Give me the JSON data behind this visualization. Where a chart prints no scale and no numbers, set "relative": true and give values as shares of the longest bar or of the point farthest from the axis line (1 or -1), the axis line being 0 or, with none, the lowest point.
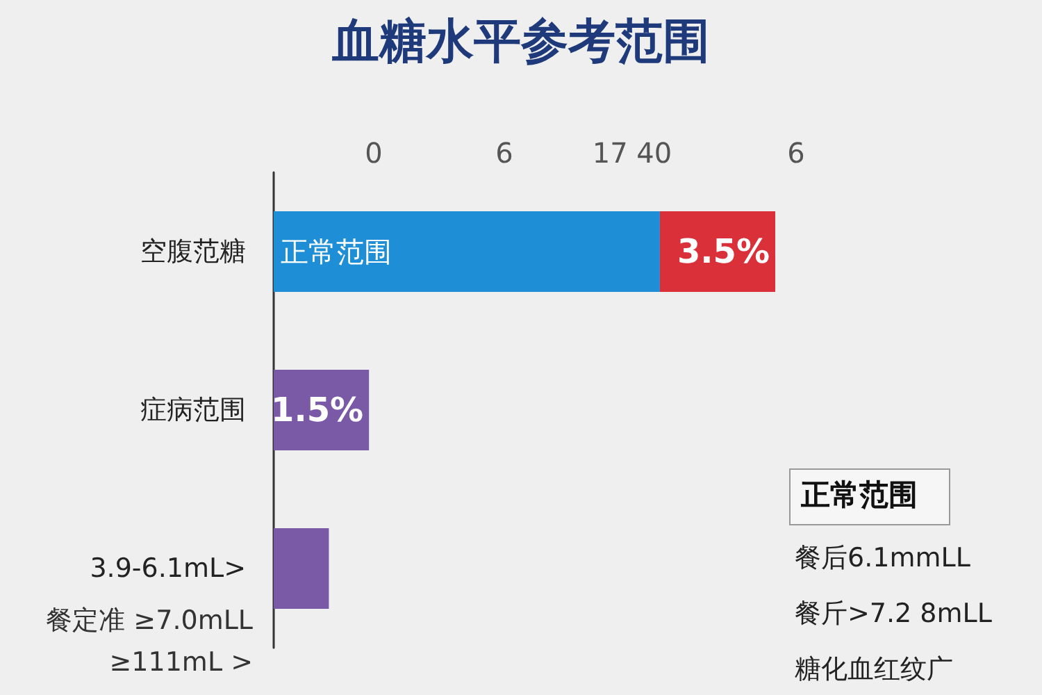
{
  "chart_data": {
    "type": "bar",
    "title": "血糖水平参考范围",
    "orientation": "horizontal",
    "stacked": true,
    "relative": true,
    "legend": false,
    "categories": [
      "空腹范糖",
      "症病范围",
      "3.9-6.1mL>"
    ],
    "series": [
      {
        "name": "正常范围",
        "color": "#1e8fd6",
        "values": [
          0.77,
          null,
          null
        ]
      },
      {
        "color": "#d9303a",
        "values": [
          0.23,
          null,
          null
        ]
      },
      {
        "color": "#7a5aa6",
        "values": [
          null,
          0.19,
          0.11
        ]
      }
    ],
    "annotations": [
      "3.5%",
      "1.5%",
      "0",
      "6",
      "17 40",
      "6",
      "餐定准 ≥7.0mLL",
      "≥111mL >",
      "正常范围",
      "餐后6.1mmLL",
      "餐斤>7.2 8mLL",
      "糖化血红纹广"
    ]
  }
}
